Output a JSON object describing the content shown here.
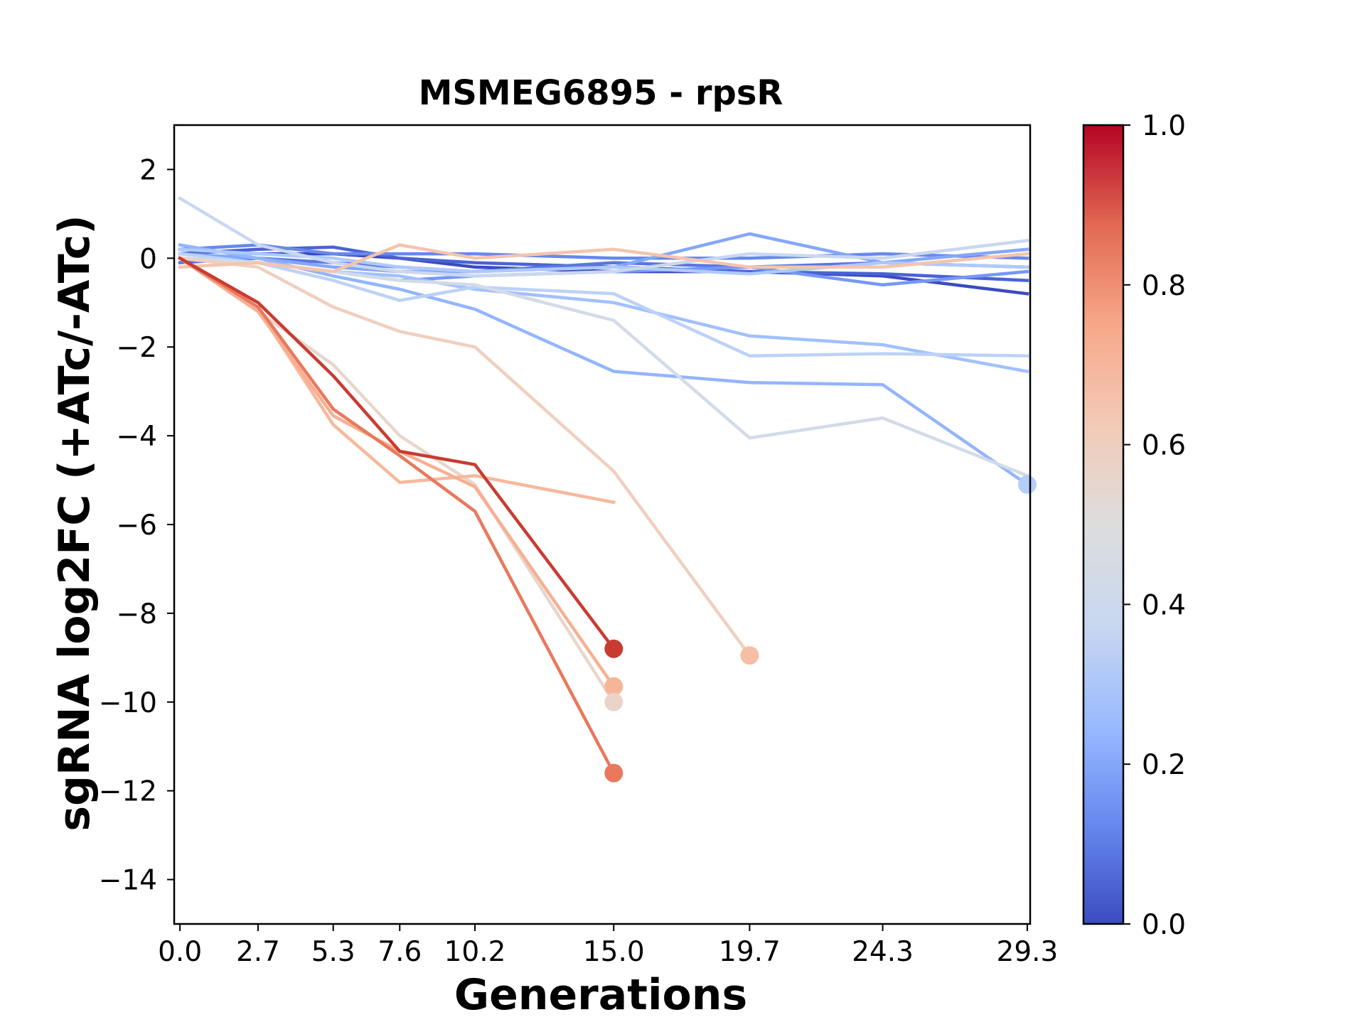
{
  "chart_data": {
    "type": "line",
    "title": "MSMEG6895 - rpsR",
    "xlabel": "Generations",
    "ylabel": "sgRNA log2FC (+ATc/-ATc)",
    "x_ticks": [
      0.0,
      2.7,
      5.3,
      7.6,
      10.2,
      15.0,
      19.7,
      24.3,
      29.3
    ],
    "x_tick_labels": [
      "0.0",
      "2.7",
      "5.3",
      "7.6",
      "10.2",
      "15.0",
      "19.7",
      "24.3",
      "29.3"
    ],
    "y_ticks": [
      2,
      0,
      -2,
      -4,
      -6,
      -8,
      -10,
      -12,
      -14
    ],
    "y_tick_labels": [
      "2",
      "0",
      "−2",
      "−4",
      "−6",
      "−8",
      "−10",
      "−12",
      "−14"
    ],
    "xlim": [
      -0.2,
      29.4
    ],
    "ylim": [
      -15,
      3
    ],
    "grid": false,
    "colorbar": {
      "colormap": "coolwarm",
      "range": [
        0.0,
        1.0
      ],
      "ticks": [
        0.0,
        0.2,
        0.4,
        0.6,
        0.8,
        1.0
      ],
      "tick_labels": [
        "0.0",
        "0.2",
        "0.4",
        "0.6",
        "0.8",
        "1.0"
      ],
      "stops": [
        "#3b4cc0",
        "#6788ee",
        "#9abbff",
        "#c9d7f0",
        "#dddddd",
        "#f2cbb7",
        "#f7a889",
        "#e26952",
        "#b40426"
      ]
    },
    "series": [
      {
        "color": "#3b4cc0",
        "x": [
          0.0,
          2.7,
          5.3,
          7.6,
          10.2,
          15.0,
          19.7,
          24.3,
          29.3
        ],
        "y": [
          0.2,
          0.1,
          0.1,
          0.0,
          -0.2,
          -0.3,
          -0.3,
          -0.4,
          -0.8
        ]
      },
      {
        "color": "#4a63d3",
        "x": [
          0.0,
          2.7,
          5.3,
          7.6,
          10.2,
          15.0,
          19.7,
          24.3,
          29.3
        ],
        "y": [
          0.1,
          0.2,
          0.25,
          0.0,
          -0.1,
          -0.2,
          -0.3,
          -0.35,
          -0.5
        ]
      },
      {
        "color": "#5977e3",
        "x": [
          0.0,
          2.7,
          5.3,
          7.6,
          10.2,
          15.0,
          19.7,
          24.3,
          29.3
        ],
        "y": [
          -0.1,
          0.0,
          -0.1,
          -0.2,
          -0.3,
          -0.1,
          -0.2,
          -0.1,
          -0.2
        ]
      },
      {
        "color": "#6788ee",
        "x": [
          0.0,
          2.7,
          5.3,
          7.6,
          10.2,
          15.0,
          19.7,
          24.3,
          29.3
        ],
        "y": [
          0.2,
          0.3,
          0.1,
          0.1,
          0.1,
          0.0,
          0.0,
          0.1,
          0.0
        ]
      },
      {
        "color": "#7597f6",
        "x": [
          0.0,
          2.7,
          5.3,
          7.6,
          10.2,
          15.0,
          19.7,
          24.3,
          29.3
        ],
        "y": [
          0.0,
          -0.1,
          -0.3,
          -0.5,
          -0.4,
          -0.3,
          -0.2,
          -0.6,
          -0.3
        ]
      },
      {
        "color": "#84a7fc",
        "x": [
          0.0,
          2.7,
          5.3,
          7.6,
          10.2,
          15.0,
          19.7,
          24.3,
          29.3
        ],
        "y": [
          0.1,
          0.0,
          -0.2,
          -0.3,
          -0.3,
          -0.2,
          0.55,
          -0.1,
          0.2
        ]
      },
      {
        "color": "#93b5fe",
        "x": [
          0.0,
          2.7,
          5.3,
          7.6,
          10.2,
          15.0,
          19.7,
          24.3,
          29.3
        ],
        "y": [
          0.3,
          0.0,
          -0.4,
          -0.7,
          -1.15,
          -2.55,
          -2.8,
          -2.85,
          -5.1
        ]
      },
      {
        "color": "#a1c0ff",
        "x": [
          0.0,
          2.7,
          5.3,
          7.6,
          10.2,
          15.0,
          19.7,
          24.3,
          29.3
        ],
        "y": [
          0.0,
          -0.1,
          -0.3,
          -0.4,
          -0.7,
          -1.0,
          -1.75,
          -1.95,
          -2.55
        ]
      },
      {
        "color": "#aec9fc",
        "x": [
          0.0,
          2.7,
          5.3,
          7.6,
          10.2,
          15.0,
          19.7,
          24.3,
          29.3
        ],
        "y": [
          0.2,
          0.1,
          0.0,
          -0.2,
          -0.3,
          -0.2,
          -0.35,
          -0.1,
          -0.2
        ]
      },
      {
        "color": "#bcd2f7",
        "x": [
          0.0,
          2.7,
          5.3,
          7.6,
          10.2,
          15.0,
          19.7,
          24.3,
          29.3
        ],
        "y": [
          0.1,
          -0.1,
          -0.5,
          -0.95,
          -0.65,
          -0.8,
          -2.2,
          -2.15,
          -2.2
        ]
      },
      {
        "color": "#c9d7f0",
        "x": [
          0.0,
          2.7,
          5.3,
          7.6,
          10.2,
          15.0,
          19.7,
          24.3,
          29.3
        ],
        "y": [
          1.35,
          0.3,
          -0.1,
          -0.3,
          -0.4,
          -0.3,
          0.1,
          0.0,
          0.4
        ]
      },
      {
        "color": "#d2dbe8",
        "x": [
          0.0,
          2.7,
          5.3,
          7.6,
          10.2,
          15.0,
          19.7,
          24.3,
          29.3
        ],
        "y": [
          0.0,
          -0.1,
          -0.3,
          -0.5,
          -0.6,
          -1.4,
          -4.05,
          -3.6,
          -4.9
        ]
      },
      {
        "color": "#e8d6cc",
        "x": [
          0.0,
          2.7,
          5.3,
          7.6,
          10.2,
          15.0
        ],
        "y": [
          0.0,
          -1.2,
          -2.4,
          -4.0,
          -5.1,
          -10.0
        ]
      },
      {
        "color": "#efcfbf",
        "x": [
          0.0,
          2.7,
          5.3,
          7.6,
          10.2,
          15.0,
          19.7
        ],
        "y": [
          0.0,
          -0.2,
          -1.1,
          -1.65,
          -2.0,
          -4.8,
          -8.95
        ]
      },
      {
        "color": "#f5c4ac",
        "x": [
          0.0,
          2.7,
          5.3,
          7.6,
          10.2,
          15.0,
          19.7,
          24.3,
          29.3
        ],
        "y": [
          -0.2,
          -0.1,
          -0.3,
          0.3,
          0.0,
          0.2,
          -0.2,
          -0.2,
          0.1
        ]
      },
      {
        "color": "#f7b89c",
        "x": [
          0.0,
          2.7,
          5.3,
          7.6,
          10.2,
          15.0
        ],
        "y": [
          0.0,
          -1.15,
          -3.75,
          -5.05,
          -4.9,
          -5.5
        ]
      },
      {
        "color": "#f7af91",
        "x": [
          0.0,
          2.7,
          5.3,
          7.6,
          10.2,
          15.0
        ],
        "y": [
          0.0,
          -1.2,
          -3.55,
          -4.35,
          -5.15,
          -9.65
        ]
      },
      {
        "color": "#e9785d",
        "x": [
          0.0,
          2.7,
          5.3,
          7.6,
          10.2,
          15.0
        ],
        "y": [
          0.0,
          -1.1,
          -3.4,
          -4.45,
          -5.7,
          -11.6
        ]
      },
      {
        "color": "#c93b31",
        "x": [
          0.0,
          2.7,
          5.3,
          7.6,
          10.2,
          15.0
        ],
        "y": [
          0.0,
          -1.0,
          -2.65,
          -4.35,
          -4.65,
          -8.8
        ]
      }
    ],
    "end_markers": [
      {
        "x": 29.3,
        "y": -5.1,
        "color": "#b4cdfb"
      },
      {
        "x": 15.0,
        "y": -8.8,
        "color": "#c93b31"
      },
      {
        "x": 19.7,
        "y": -8.95,
        "color": "#f5bea5"
      },
      {
        "x": 15.0,
        "y": -9.65,
        "color": "#f5b598"
      },
      {
        "x": 15.0,
        "y": -10.0,
        "color": "#ead3c9"
      },
      {
        "x": 15.0,
        "y": -11.6,
        "color": "#e9785d"
      }
    ]
  }
}
